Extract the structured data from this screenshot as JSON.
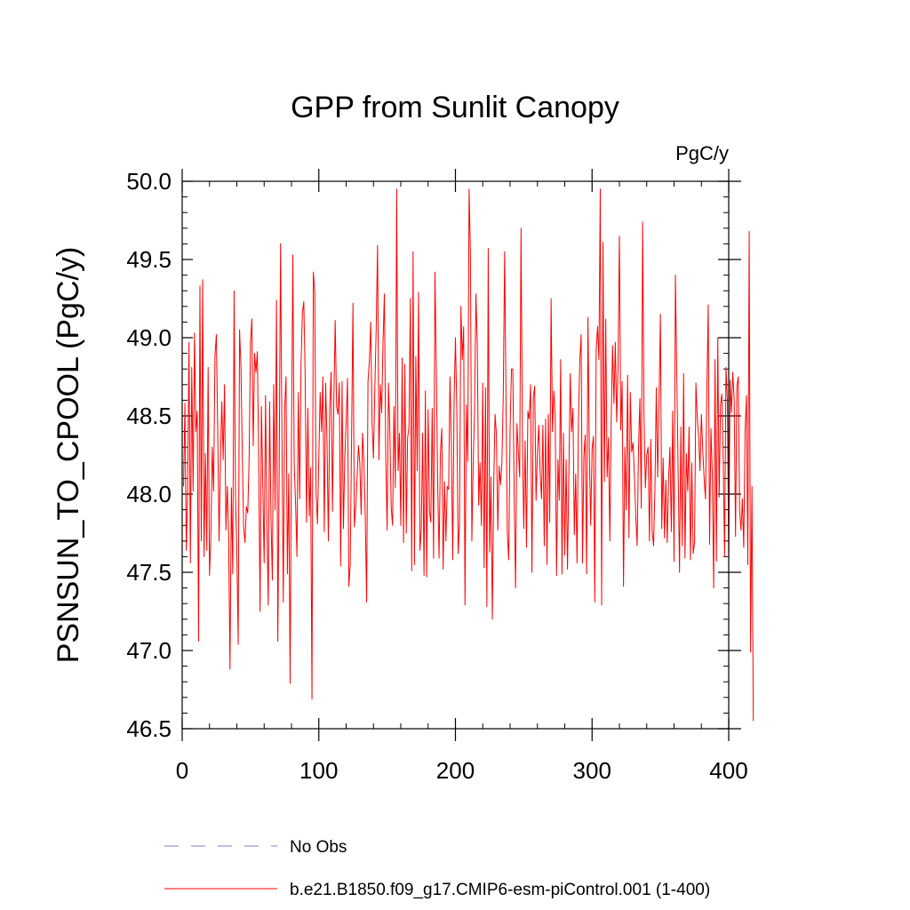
{
  "chart_data": {
    "type": "line",
    "title": "GPP from Sunlit Canopy",
    "units": "PgC/y",
    "ylabel": "PSNSUN_TO_CPOOL  (PgC/y)",
    "xlabel": "",
    "xlim": [
      0,
      400
    ],
    "ylim": [
      46.5,
      50.0
    ],
    "xticks": [
      0,
      100,
      200,
      300,
      400
    ],
    "xtick_labels": [
      "0",
      "100",
      "200",
      "300",
      "400"
    ],
    "yticks": [
      46.5,
      47.0,
      47.5,
      48.0,
      48.5,
      49.0,
      49.5,
      50.0
    ],
    "ytick_labels": [
      "46.5",
      "47.0",
      "47.5",
      "48.0",
      "48.5",
      "49.0",
      "49.5",
      "50.0"
    ],
    "series": [
      {
        "name": "b.e21.B1850.f09_g17.CMIP6-esm-piControl.001 (1-400)",
        "color": "#ff0000",
        "style": "solid",
        "x_start": 1,
        "values": [
          48.05,
          48.58,
          47.64,
          48.03,
          48.97,
          47.56,
          48.81,
          48.02,
          49.03,
          48.4,
          48.53,
          47.06,
          49.33,
          47.7,
          49.37,
          47.6,
          48.26,
          47.64,
          48.81,
          47.48,
          47.73,
          48.3,
          48.02,
          48.88,
          49.02,
          48.42,
          47.7,
          48.21,
          48.59,
          48.22,
          48.7,
          47.77,
          48.05,
          47.74,
          46.88,
          48.04,
          47.49,
          49.3,
          48.0,
          47.64,
          47.04,
          49.05,
          48.82,
          48.26,
          47.78,
          47.69,
          47.92,
          47.88,
          48.23,
          48.97,
          49.12,
          48.31,
          48.9,
          48.78,
          48.91,
          48.23,
          47.25,
          48.56,
          48.06,
          47.56,
          48.63,
          47.82,
          47.29,
          48.59,
          47.84,
          47.45,
          48.7,
          47.9,
          49.24,
          47.06,
          48.16,
          49.6,
          48.38,
          47.31,
          48.54,
          48.75,
          47.49,
          48.13,
          46.79,
          48.35,
          49.53,
          48.19,
          47.94,
          47.6,
          48.65,
          47.97,
          48.83,
          49.16,
          49.23,
          48.76,
          47.82,
          48.55,
          47.86,
          48.17,
          46.69,
          49.42,
          49.3,
          48.01,
          47.81,
          48.23,
          48.65,
          48.4,
          48.75,
          47.76,
          48.71,
          48.34,
          47.7,
          48.55,
          48.78,
          47.89,
          48.6,
          49.11,
          48.56,
          48.51,
          48.71,
          47.54,
          48.72,
          47.78,
          48.23,
          48.45,
          48.74,
          47.41,
          47.55,
          48.38,
          49.22,
          47.79,
          47.92,
          48.1,
          48.31,
          48.2,
          47.87,
          48.39,
          48.21,
          47.86,
          47.31,
          48.72,
          48.85,
          49.1,
          48.45,
          48.23,
          48.67,
          49.06,
          49.59,
          48.22,
          48.7,
          48.52,
          48.97,
          49.28,
          48.24,
          47.77,
          48.71,
          48.4,
          47.91,
          47.8,
          48.56,
          48.04,
          49.95,
          48.15,
          48.39,
          47.8,
          48.87,
          47.69,
          48.83,
          47.75,
          48.36,
          48.43,
          49.25,
          47.51,
          49.55,
          47.55,
          48.88,
          48.15,
          49.29,
          47.64,
          47.77,
          48.39,
          47.48,
          48.66,
          47.47,
          48.54,
          47.89,
          47.82,
          48.55,
          47.59,
          49.42,
          48.79,
          48.06,
          47.59,
          48.26,
          48.42,
          47.52,
          48.08,
          47.7,
          48.05,
          48.03,
          48.75,
          48.32,
          47.58,
          48.59,
          49.0,
          48.54,
          47.62,
          47.82,
          49.2,
          48.86,
          49.07,
          47.29,
          48.57,
          48.21,
          49.95,
          49.52,
          47.7,
          48.21,
          48.53,
          49.28,
          48.95,
          47.93,
          48.2,
          47.8,
          48.71,
          47.53,
          48.68,
          47.28,
          49.57,
          47.63,
          48.11,
          47.2,
          48.05,
          48.51,
          48.38,
          47.77,
          48.18,
          48.06,
          48.2,
          48.63,
          49.55,
          48.6,
          47.74,
          47.58,
          48.42,
          48.8,
          48.8,
          47.99,
          47.4,
          48.45,
          48.28,
          48.11,
          49.7,
          48.37,
          47.78,
          48.34,
          47.66,
          48.53,
          48.48,
          48.7,
          47.5,
          48.61,
          48.69,
          47.96,
          48.26,
          48.44,
          48.14,
          47.97,
          48.44,
          47.67,
          48.48,
          47.55,
          48.51,
          47.82,
          49.25,
          48.4,
          48.66,
          48.5,
          47.48,
          48.22,
          47.96,
          48.86,
          47.49,
          48.39,
          47.61,
          48.22,
          47.52,
          48.12,
          48.77,
          48.4,
          48.55,
          47.74,
          48.13,
          47.56,
          48.46,
          48.85,
          49.02,
          47.56,
          48.24,
          48.38,
          47.49,
          49.13,
          48.27,
          47.8,
          48.29,
          48.37,
          47.31,
          48.92,
          49.07,
          48.86,
          49.95,
          47.29,
          49.61,
          48.08,
          49.12,
          48.11,
          48.36,
          47.7,
          48.49,
          48.95,
          48.58,
          48.97,
          48.46,
          48.81,
          49.65,
          48.41,
          48.72,
          47.41,
          48.3,
          47.9,
          48.76,
          47.72,
          48.65,
          48.27,
          48.33,
          48.12,
          47.86,
          47.67,
          48.3,
          48.61,
          47.91,
          49.74,
          48.51,
          48.04,
          48.25,
          48.3,
          47.7,
          48.35,
          47.76,
          47.67,
          48.03,
          48.68,
          48.11,
          48.58,
          49.15,
          47.78,
          48.23,
          47.72,
          48.09,
          47.69,
          48.1,
          48.3,
          47.76,
          48.53,
          47.57,
          49.4,
          48.75,
          48.14,
          47.5,
          48.43,
          47.67,
          48.77,
          47.59,
          48.26,
          48.02,
          48.43,
          47.58,
          48.2,
          47.62,
          47.69,
          48.71,
          48.48,
          48.37,
          48.15,
          48.51,
          48.28,
          48.1,
          47.97,
          48.65,
          49.21,
          47.68,
          48.42,
          48.12,
          47.4,
          48.86,
          47.57,
          49.0,
          47.98,
          48.57,
          48.64,
          48.22,
          47.6,
          48.81,
          48.6,
          47.59,
          48.73,
          48.52,
          48.78,
          48.6,
          47.73,
          48.69,
          48.75,
          47.89,
          47.77,
          47.97,
          47.66,
          48.4,
          48.63,
          47.55,
          49.68,
          46.99,
          48.05,
          46.55
        ]
      }
    ],
    "legend": [
      {
        "label": "No Obs",
        "color": "#8080c8",
        "style": "dashed"
      },
      {
        "label": "b.e21.B1850.f09_g17.CMIP6-esm-piControl.001 (1-400)",
        "color": "#ff0000",
        "style": "solid"
      }
    ],
    "grid": false,
    "legend_position": "bottom"
  }
}
